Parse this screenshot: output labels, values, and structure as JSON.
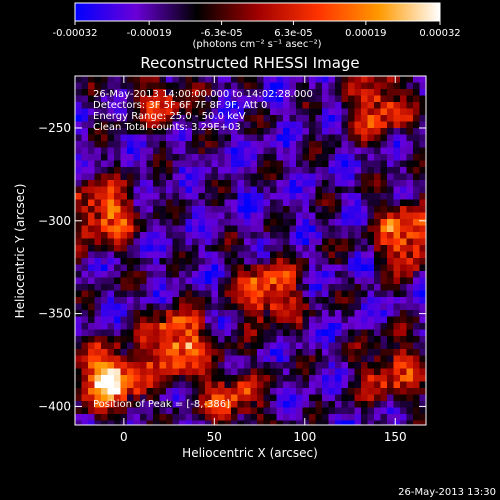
{
  "chart_data": {
    "type": "heatmap",
    "title": "Reconstructed RHESSI Image",
    "xlabel": "Heliocentric X (arcsec)",
    "ylabel": "Heliocentric Y (arcsec)",
    "xlim": [
      -27,
      167
    ],
    "ylim": [
      -410,
      -222
    ],
    "xticks": [
      0,
      50,
      100,
      150
    ],
    "yticks": [
      -250,
      -300,
      -350,
      -400
    ],
    "colorbar": {
      "range": [
        -0.00032,
        0.00032
      ],
      "tick_labels": [
        "-0.00032",
        "-0.00019",
        "-6.3e-05",
        "6.3e-05",
        "0.00019",
        "0.00032"
      ],
      "unit_label": "(photons cm⁻² s⁻¹ asec⁻²)",
      "colors": [
        "#0000ff",
        "#6a00d8",
        "#000000",
        "#a00000",
        "#ff3300",
        "#ff9900",
        "#ffffff"
      ]
    },
    "info_lines": [
      "26-May-2013 14:00:00.000 to 14:02:28.000",
      "Detectors: 3F 5F 6F 7F 8F 9F, Att 0",
      "Energy Range: 25.0 - 50.0 keV",
      "Clean    Total counts: 3.29E+03"
    ],
    "peak_label": "Position of Peak = [-8,-386]",
    "peak_position": [
      -8,
      -386
    ],
    "bright_regions": [
      {
        "x": -8,
        "y": -386,
        "level": 0.95
      },
      {
        "x": 30,
        "y": -366,
        "level": 0.85
      },
      {
        "x": 80,
        "y": -338,
        "level": 0.7
      },
      {
        "x": -12,
        "y": -296,
        "level": 0.75
      },
      {
        "x": 158,
        "y": -308,
        "level": 0.8
      },
      {
        "x": 140,
        "y": -238,
        "level": 0.65
      },
      {
        "x": 148,
        "y": -382,
        "level": 0.55
      },
      {
        "x": 60,
        "y": -396,
        "level": 0.55
      },
      {
        "x": 20,
        "y": -235,
        "level": 0.45
      }
    ]
  },
  "timestamp": "26-May-2013 13:30"
}
